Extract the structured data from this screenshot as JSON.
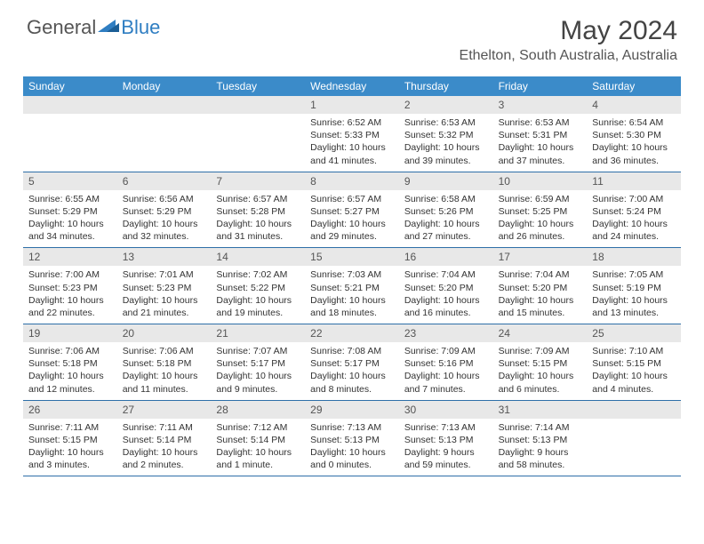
{
  "brand": {
    "general": "General",
    "blue": "Blue"
  },
  "title": "May 2024",
  "location": "Ethelton, South Australia, Australia",
  "weekdays": [
    "Sunday",
    "Monday",
    "Tuesday",
    "Wednesday",
    "Thursday",
    "Friday",
    "Saturday"
  ],
  "colors": {
    "header_bar": "#3b8bc9",
    "row_divider": "#2e6fa8",
    "daynum_bg": "#e8e8e8",
    "brand_blue": "#2f7ec2",
    "text": "#333333"
  },
  "layout": {
    "cols": 7,
    "rows": 5
  },
  "weeks": [
    [
      {
        "empty": true
      },
      {
        "empty": true
      },
      {
        "empty": true
      },
      {
        "num": "1",
        "sunrise": "Sunrise: 6:52 AM",
        "sunset": "Sunset: 5:33 PM",
        "daylight1": "Daylight: 10 hours",
        "daylight2": "and 41 minutes."
      },
      {
        "num": "2",
        "sunrise": "Sunrise: 6:53 AM",
        "sunset": "Sunset: 5:32 PM",
        "daylight1": "Daylight: 10 hours",
        "daylight2": "and 39 minutes."
      },
      {
        "num": "3",
        "sunrise": "Sunrise: 6:53 AM",
        "sunset": "Sunset: 5:31 PM",
        "daylight1": "Daylight: 10 hours",
        "daylight2": "and 37 minutes."
      },
      {
        "num": "4",
        "sunrise": "Sunrise: 6:54 AM",
        "sunset": "Sunset: 5:30 PM",
        "daylight1": "Daylight: 10 hours",
        "daylight2": "and 36 minutes."
      }
    ],
    [
      {
        "num": "5",
        "sunrise": "Sunrise: 6:55 AM",
        "sunset": "Sunset: 5:29 PM",
        "daylight1": "Daylight: 10 hours",
        "daylight2": "and 34 minutes."
      },
      {
        "num": "6",
        "sunrise": "Sunrise: 6:56 AM",
        "sunset": "Sunset: 5:29 PM",
        "daylight1": "Daylight: 10 hours",
        "daylight2": "and 32 minutes."
      },
      {
        "num": "7",
        "sunrise": "Sunrise: 6:57 AM",
        "sunset": "Sunset: 5:28 PM",
        "daylight1": "Daylight: 10 hours",
        "daylight2": "and 31 minutes."
      },
      {
        "num": "8",
        "sunrise": "Sunrise: 6:57 AM",
        "sunset": "Sunset: 5:27 PM",
        "daylight1": "Daylight: 10 hours",
        "daylight2": "and 29 minutes."
      },
      {
        "num": "9",
        "sunrise": "Sunrise: 6:58 AM",
        "sunset": "Sunset: 5:26 PM",
        "daylight1": "Daylight: 10 hours",
        "daylight2": "and 27 minutes."
      },
      {
        "num": "10",
        "sunrise": "Sunrise: 6:59 AM",
        "sunset": "Sunset: 5:25 PM",
        "daylight1": "Daylight: 10 hours",
        "daylight2": "and 26 minutes."
      },
      {
        "num": "11",
        "sunrise": "Sunrise: 7:00 AM",
        "sunset": "Sunset: 5:24 PM",
        "daylight1": "Daylight: 10 hours",
        "daylight2": "and 24 minutes."
      }
    ],
    [
      {
        "num": "12",
        "sunrise": "Sunrise: 7:00 AM",
        "sunset": "Sunset: 5:23 PM",
        "daylight1": "Daylight: 10 hours",
        "daylight2": "and 22 minutes."
      },
      {
        "num": "13",
        "sunrise": "Sunrise: 7:01 AM",
        "sunset": "Sunset: 5:23 PM",
        "daylight1": "Daylight: 10 hours",
        "daylight2": "and 21 minutes."
      },
      {
        "num": "14",
        "sunrise": "Sunrise: 7:02 AM",
        "sunset": "Sunset: 5:22 PM",
        "daylight1": "Daylight: 10 hours",
        "daylight2": "and 19 minutes."
      },
      {
        "num": "15",
        "sunrise": "Sunrise: 7:03 AM",
        "sunset": "Sunset: 5:21 PM",
        "daylight1": "Daylight: 10 hours",
        "daylight2": "and 18 minutes."
      },
      {
        "num": "16",
        "sunrise": "Sunrise: 7:04 AM",
        "sunset": "Sunset: 5:20 PM",
        "daylight1": "Daylight: 10 hours",
        "daylight2": "and 16 minutes."
      },
      {
        "num": "17",
        "sunrise": "Sunrise: 7:04 AM",
        "sunset": "Sunset: 5:20 PM",
        "daylight1": "Daylight: 10 hours",
        "daylight2": "and 15 minutes."
      },
      {
        "num": "18",
        "sunrise": "Sunrise: 7:05 AM",
        "sunset": "Sunset: 5:19 PM",
        "daylight1": "Daylight: 10 hours",
        "daylight2": "and 13 minutes."
      }
    ],
    [
      {
        "num": "19",
        "sunrise": "Sunrise: 7:06 AM",
        "sunset": "Sunset: 5:18 PM",
        "daylight1": "Daylight: 10 hours",
        "daylight2": "and 12 minutes."
      },
      {
        "num": "20",
        "sunrise": "Sunrise: 7:06 AM",
        "sunset": "Sunset: 5:18 PM",
        "daylight1": "Daylight: 10 hours",
        "daylight2": "and 11 minutes."
      },
      {
        "num": "21",
        "sunrise": "Sunrise: 7:07 AM",
        "sunset": "Sunset: 5:17 PM",
        "daylight1": "Daylight: 10 hours",
        "daylight2": "and 9 minutes."
      },
      {
        "num": "22",
        "sunrise": "Sunrise: 7:08 AM",
        "sunset": "Sunset: 5:17 PM",
        "daylight1": "Daylight: 10 hours",
        "daylight2": "and 8 minutes."
      },
      {
        "num": "23",
        "sunrise": "Sunrise: 7:09 AM",
        "sunset": "Sunset: 5:16 PM",
        "daylight1": "Daylight: 10 hours",
        "daylight2": "and 7 minutes."
      },
      {
        "num": "24",
        "sunrise": "Sunrise: 7:09 AM",
        "sunset": "Sunset: 5:15 PM",
        "daylight1": "Daylight: 10 hours",
        "daylight2": "and 6 minutes."
      },
      {
        "num": "25",
        "sunrise": "Sunrise: 7:10 AM",
        "sunset": "Sunset: 5:15 PM",
        "daylight1": "Daylight: 10 hours",
        "daylight2": "and 4 minutes."
      }
    ],
    [
      {
        "num": "26",
        "sunrise": "Sunrise: 7:11 AM",
        "sunset": "Sunset: 5:15 PM",
        "daylight1": "Daylight: 10 hours",
        "daylight2": "and 3 minutes."
      },
      {
        "num": "27",
        "sunrise": "Sunrise: 7:11 AM",
        "sunset": "Sunset: 5:14 PM",
        "daylight1": "Daylight: 10 hours",
        "daylight2": "and 2 minutes."
      },
      {
        "num": "28",
        "sunrise": "Sunrise: 7:12 AM",
        "sunset": "Sunset: 5:14 PM",
        "daylight1": "Daylight: 10 hours",
        "daylight2": "and 1 minute."
      },
      {
        "num": "29",
        "sunrise": "Sunrise: 7:13 AM",
        "sunset": "Sunset: 5:13 PM",
        "daylight1": "Daylight: 10 hours",
        "daylight2": "and 0 minutes."
      },
      {
        "num": "30",
        "sunrise": "Sunrise: 7:13 AM",
        "sunset": "Sunset: 5:13 PM",
        "daylight1": "Daylight: 9 hours",
        "daylight2": "and 59 minutes."
      },
      {
        "num": "31",
        "sunrise": "Sunrise: 7:14 AM",
        "sunset": "Sunset: 5:13 PM",
        "daylight1": "Daylight: 9 hours",
        "daylight2": "and 58 minutes."
      },
      {
        "empty": true
      }
    ]
  ]
}
